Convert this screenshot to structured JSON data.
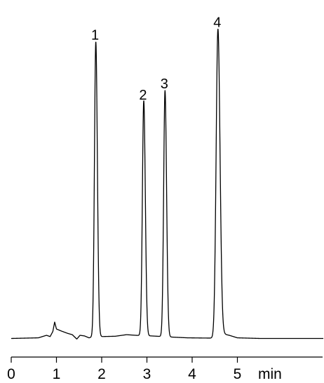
{
  "chart_data": {
    "type": "line",
    "title": "",
    "xlabel": "",
    "ylabel": "",
    "x_unit": "min",
    "xlim": [
      0,
      6.9
    ],
    "x_ticks": [
      0,
      1,
      2,
      3,
      4,
      5
    ],
    "x_tick_labels": [
      "0",
      "1",
      "2",
      "3",
      "4",
      "5"
    ],
    "ylim": [
      0,
      1
    ],
    "grid": false,
    "legend": "none",
    "line_color": "#000000",
    "baseline": [
      [
        0.0,
        0.01
      ],
      [
        0.6,
        0.012
      ],
      [
        0.78,
        0.02
      ],
      [
        0.86,
        0.016
      ],
      [
        0.92,
        0.032
      ],
      [
        0.96,
        0.062
      ],
      [
        1.0,
        0.04
      ],
      [
        1.1,
        0.034
      ],
      [
        1.25,
        0.026
      ],
      [
        1.35,
        0.022
      ],
      [
        1.45,
        0.008
      ],
      [
        1.52,
        0.02
      ],
      [
        1.62,
        0.018
      ],
      [
        1.72,
        0.012
      ],
      [
        1.8,
        0.015
      ],
      [
        2.0,
        0.016
      ],
      [
        2.3,
        0.017
      ],
      [
        2.55,
        0.022
      ],
      [
        2.75,
        0.02
      ],
      [
        3.1,
        0.018
      ],
      [
        3.6,
        0.014
      ],
      [
        3.9,
        0.012
      ],
      [
        4.5,
        0.011
      ],
      [
        4.7,
        0.024
      ],
      [
        4.82,
        0.02
      ],
      [
        5.0,
        0.012
      ],
      [
        5.5,
        0.01
      ],
      [
        6.9,
        0.01
      ]
    ],
    "peaks": [
      {
        "label": "1",
        "time": 1.87,
        "height": 0.935,
        "width": 0.03
      },
      {
        "label": "2",
        "time": 2.93,
        "height": 0.745,
        "width": 0.03
      },
      {
        "label": "3",
        "time": 3.4,
        "height": 0.78,
        "width": 0.03
      },
      {
        "label": "4",
        "time": 4.57,
        "height": 0.975,
        "width": 0.04
      }
    ]
  }
}
